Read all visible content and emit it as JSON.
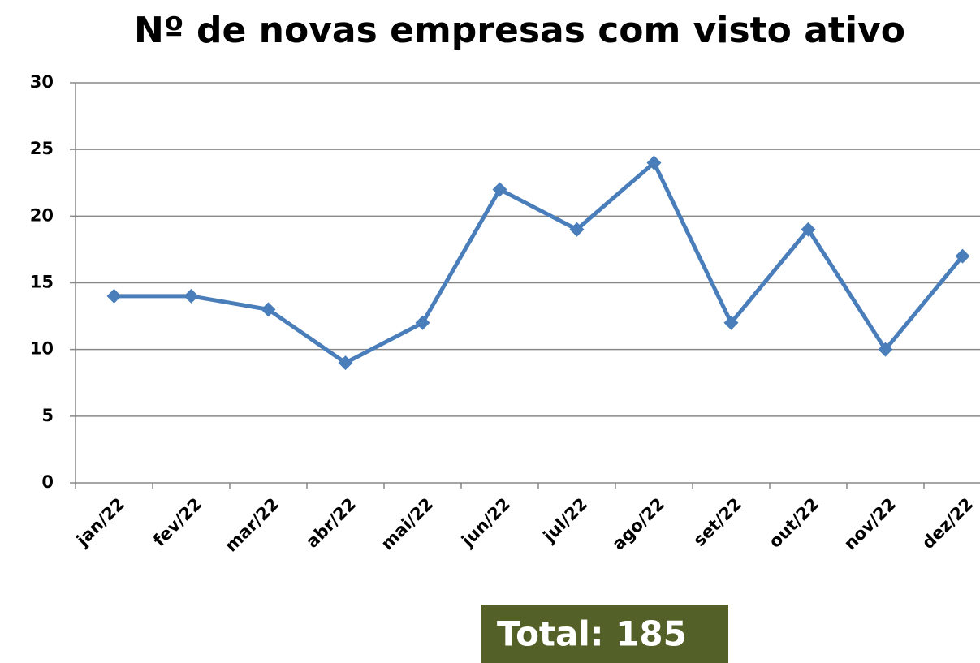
{
  "chart_data": {
    "type": "line",
    "title": "Nº de novas empresas com visto ativo",
    "categories": [
      "jan/22",
      "fev/22",
      "mar/22",
      "abr/22",
      "mai/22",
      "jun/22",
      "jul/22",
      "ago/22",
      "set/22",
      "out/22",
      "nov/22",
      "dez/22"
    ],
    "series": [
      {
        "name": "Nº de novas empresas com visto ativo",
        "color": "#4a7ebb",
        "values": [
          14,
          14,
          13,
          9,
          12,
          22,
          19,
          24,
          12,
          19,
          10,
          17
        ]
      }
    ],
    "ylim": [
      0,
      30
    ],
    "yticks": [
      0,
      5,
      10,
      15,
      20,
      25,
      30
    ],
    "grid": true,
    "annotation": "Total: 185"
  }
}
